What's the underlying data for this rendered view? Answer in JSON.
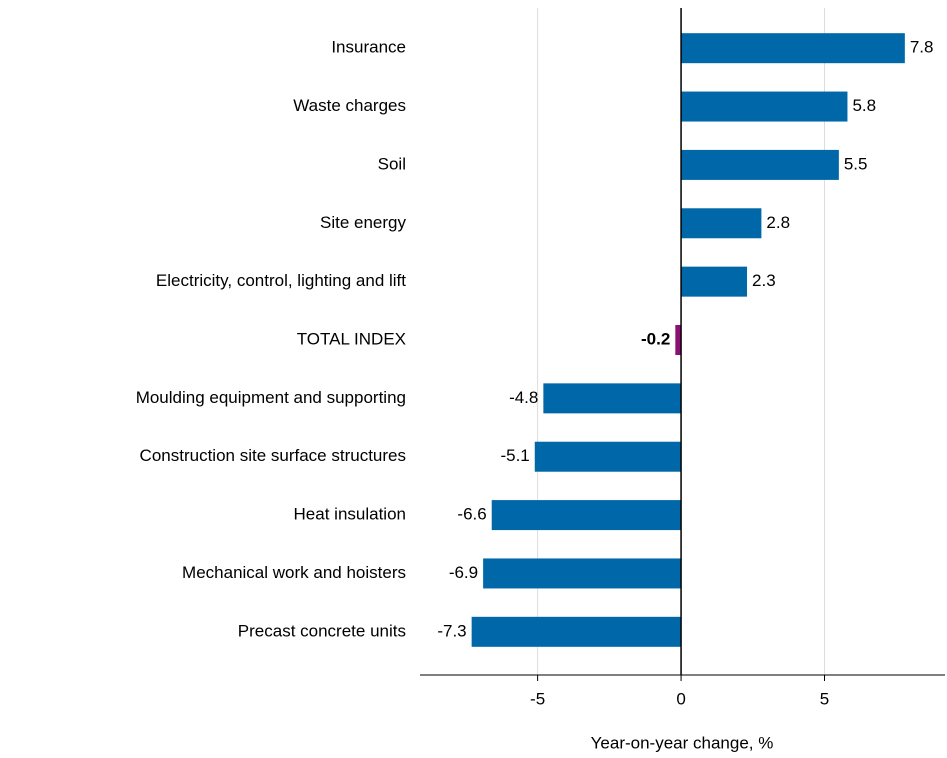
{
  "chart_data": {
    "type": "barh",
    "categories": [
      "Insurance",
      "Waste charges",
      "Soil",
      "Site energy",
      "Electricity, control, lighting and lift",
      "TOTAL INDEX",
      "Moulding equipment and supporting",
      "Construction site surface structures",
      "Heat insulation",
      "Mechanical work and hoisters",
      "Precast concrete units"
    ],
    "values": [
      7.8,
      5.8,
      5.5,
      2.8,
      2.3,
      -0.2,
      -4.8,
      -5.1,
      -6.6,
      -6.9,
      -7.3
    ],
    "color": "#0068a8",
    "highlight_category": "TOTAL INDEX",
    "highlight_color": "#8c0f73",
    "xlabel": "Year-on-year change, %",
    "xlim": [
      -9.1,
      9.2
    ],
    "xticks": [
      -5,
      0,
      5
    ],
    "grid": true
  }
}
